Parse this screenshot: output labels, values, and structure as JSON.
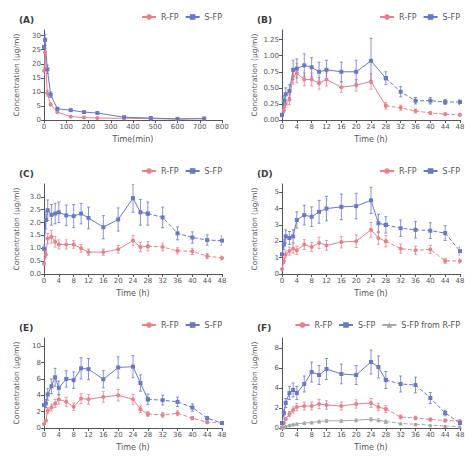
{
  "chart_data": [
    {
      "type": "line",
      "title": "(A)",
      "xlabel": "Time(min)",
      "ylabel": "Concentration (μg/ml)",
      "xlim": [
        0,
        800
      ],
      "ylim": [
        0,
        32
      ],
      "xticks": [
        0,
        100,
        200,
        300,
        400,
        500,
        600,
        700,
        800
      ],
      "yticks": [
        0,
        5,
        10,
        15,
        20,
        25,
        30
      ],
      "grid": false,
      "legend": "upper right",
      "series": [
        {
          "name": "R-FP",
          "color": "#E8808A",
          "marker": "circle",
          "x": [
            0,
            5,
            15,
            30,
            60,
            120,
            180,
            240,
            360,
            480,
            600,
            720
          ],
          "values": [
            17.5,
            24.0,
            9.5,
            5.5,
            2.8,
            1.2,
            0.9,
            0.7,
            0.6,
            0.5,
            0.3,
            0.5
          ],
          "errors": [
            1.5,
            2.5,
            1.0,
            0.5,
            0.3,
            0.2,
            0.15,
            0.1,
            0.08,
            0.07,
            0.05,
            0.08
          ]
        },
        {
          "name": "S-FP",
          "color": "#6878C8",
          "marker": "square",
          "x": [
            0,
            5,
            15,
            30,
            60,
            120,
            180,
            240,
            360,
            480,
            600,
            720
          ],
          "values": [
            26.0,
            28.5,
            18.0,
            9.0,
            4.0,
            3.5,
            2.8,
            2.5,
            1.0,
            0.7,
            0.4,
            0.5
          ],
          "errors": [
            2.0,
            2.0,
            1.5,
            1.0,
            0.4,
            0.4,
            0.3,
            0.3,
            0.1,
            0.1,
            0.06,
            0.08
          ]
        }
      ]
    },
    {
      "type": "line",
      "title": "(B)",
      "xlabel": "Time (h)",
      "ylabel": "Concentration (μg/ml)",
      "xlim": [
        0,
        48
      ],
      "ylim": [
        0,
        1.4
      ],
      "xticks": [
        0,
        4,
        8,
        12,
        16,
        20,
        24,
        28,
        32,
        36,
        40,
        44,
        48
      ],
      "yticks": [
        {
          "value": 0,
          "label": "0.00"
        },
        0.25,
        {
          "value": 0.5,
          "label": "0.50"
        },
        0.75,
        {
          "value": 1,
          "label": "1.00"
        },
        1.25
      ],
      "grid": false,
      "legend": "upper right",
      "dash_start": 28,
      "series": [
        {
          "name": "R-FP",
          "color": "#E8808A",
          "marker": "circle",
          "x": [
            0,
            0.5,
            1,
            2,
            3,
            4,
            6,
            8,
            10,
            12,
            16,
            20,
            24,
            28,
            32,
            36,
            40,
            44,
            48
          ],
          "values": [
            0.07,
            0.15,
            0.25,
            0.32,
            0.68,
            0.73,
            0.63,
            0.63,
            0.57,
            0.63,
            0.51,
            0.54,
            0.6,
            0.22,
            0.19,
            0.14,
            0.11,
            0.09,
            0.08
          ],
          "errors": [
            0.02,
            0.04,
            0.06,
            0.08,
            0.12,
            0.15,
            0.1,
            0.1,
            0.09,
            0.1,
            0.08,
            0.09,
            0.12,
            0.05,
            0.04,
            0.03,
            0.02,
            0.02,
            0.02
          ]
        },
        {
          "name": "S-FP",
          "color": "#6878C8",
          "marker": "square",
          "x": [
            0,
            0.5,
            1,
            2,
            3,
            4,
            6,
            8,
            10,
            12,
            16,
            20,
            24,
            28,
            32,
            36,
            40,
            44,
            48
          ],
          "values": [
            0.08,
            0.3,
            0.4,
            0.45,
            0.78,
            0.8,
            0.85,
            0.82,
            0.75,
            0.78,
            0.75,
            0.75,
            0.92,
            0.65,
            0.44,
            0.3,
            0.3,
            0.28,
            0.28
          ],
          "errors": [
            0.02,
            0.08,
            0.1,
            0.1,
            0.15,
            0.15,
            0.18,
            0.15,
            0.15,
            0.15,
            0.15,
            0.18,
            0.35,
            0.1,
            0.08,
            0.05,
            0.05,
            0.04,
            0.04
          ]
        }
      ]
    },
    {
      "type": "line",
      "title": "(C)",
      "xlabel": "Time (h)",
      "ylabel": "Concentration (μg/ml)",
      "xlim": [
        0,
        48
      ],
      "ylim": [
        0,
        3.5
      ],
      "xticks": [
        0,
        4,
        8,
        12,
        16,
        20,
        24,
        28,
        32,
        36,
        40,
        44,
        48
      ],
      "yticks": [
        {
          "value": 0,
          "label": "0.0"
        },
        0.5,
        {
          "value": 1,
          "label": "1.0"
        },
        1.5,
        {
          "value": 2,
          "label": "2.0"
        },
        2.5,
        {
          "value": 3,
          "label": "3.0"
        }
      ],
      "grid": false,
      "legend": "upper right",
      "dash_start": 28,
      "series": [
        {
          "name": "R-FP",
          "color": "#E8808A",
          "marker": "circle",
          "x": [
            0,
            0.5,
            1,
            2,
            3,
            4,
            6,
            8,
            10,
            12,
            16,
            20,
            24,
            26,
            28,
            32,
            36,
            40,
            44,
            48
          ],
          "values": [
            0.4,
            0.75,
            1.38,
            1.45,
            1.25,
            1.15,
            1.15,
            1.15,
            1.0,
            0.85,
            0.85,
            0.96,
            1.3,
            1.05,
            1.08,
            1.05,
            0.9,
            0.88,
            0.7,
            0.62
          ],
          "errors": [
            0.06,
            0.12,
            0.2,
            0.25,
            0.2,
            0.18,
            0.18,
            0.15,
            0.15,
            0.12,
            0.12,
            0.15,
            0.2,
            0.18,
            0.18,
            0.15,
            0.12,
            0.12,
            0.1,
            0.08
          ]
        },
        {
          "name": "S-FP",
          "color": "#6878C8",
          "marker": "square",
          "x": [
            0,
            0.5,
            1,
            2,
            3,
            4,
            6,
            8,
            10,
            12,
            16,
            20,
            24,
            26,
            28,
            32,
            36,
            40,
            44,
            48
          ],
          "values": [
            0.98,
            2.1,
            2.48,
            2.3,
            2.35,
            2.4,
            2.28,
            2.25,
            2.35,
            2.18,
            1.82,
            2.12,
            2.95,
            2.4,
            2.35,
            2.2,
            1.58,
            1.42,
            1.32,
            1.3
          ],
          "errors": [
            0.15,
            0.35,
            0.4,
            0.4,
            0.4,
            0.4,
            0.4,
            0.45,
            0.4,
            0.42,
            0.45,
            0.45,
            0.55,
            0.5,
            0.45,
            0.4,
            0.25,
            0.22,
            0.2,
            0.18
          ]
        }
      ]
    },
    {
      "type": "line",
      "title": "(D)",
      "xlabel": "Time (h)",
      "ylabel": "Concentration (μg/ml)",
      "xlim": [
        0,
        48
      ],
      "ylim": [
        0,
        5.5
      ],
      "xticks": [
        0,
        4,
        8,
        12,
        16,
        20,
        24,
        28,
        32,
        36,
        40,
        44,
        48
      ],
      "yticks": [
        0,
        1,
        2,
        3,
        4,
        5
      ],
      "grid": false,
      "legend": "upper right",
      "dash_start": 28,
      "series": [
        {
          "name": "R-FP",
          "color": "#E8808A",
          "marker": "circle",
          "x": [
            0,
            0.5,
            1,
            2,
            3,
            4,
            6,
            8,
            10,
            12,
            16,
            20,
            24,
            26,
            28,
            32,
            36,
            40,
            44,
            48
          ],
          "values": [
            0.3,
            0.8,
            1.2,
            1.4,
            1.55,
            1.45,
            1.8,
            1.65,
            1.9,
            1.75,
            1.95,
            2.0,
            2.7,
            2.2,
            2.0,
            1.55,
            1.45,
            1.5,
            0.8,
            0.8
          ],
          "errors": [
            0.05,
            0.15,
            0.2,
            0.25,
            0.28,
            0.25,
            0.3,
            0.28,
            0.35,
            0.3,
            0.35,
            0.38,
            0.45,
            0.38,
            0.35,
            0.28,
            0.25,
            0.25,
            0.15,
            0.15
          ]
        },
        {
          "name": "S-FP",
          "color": "#6878C8",
          "marker": "square",
          "x": [
            0,
            0.5,
            1,
            2,
            3,
            4,
            6,
            8,
            10,
            12,
            16,
            20,
            24,
            26,
            28,
            32,
            36,
            40,
            44,
            48
          ],
          "values": [
            1.2,
            1.8,
            2.3,
            2.2,
            2.3,
            3.3,
            3.6,
            3.5,
            3.8,
            4.0,
            4.1,
            4.15,
            4.5,
            3.1,
            3.0,
            2.8,
            2.7,
            2.65,
            2.5,
            1.4
          ],
          "errors": [
            0.2,
            0.3,
            0.4,
            0.4,
            0.4,
            0.5,
            0.6,
            0.6,
            0.7,
            0.75,
            0.78,
            0.78,
            0.8,
            0.55,
            0.5,
            0.5,
            0.5,
            0.48,
            0.45,
            0.25
          ]
        }
      ]
    },
    {
      "type": "line",
      "title": "(E)",
      "xlabel": "Time (h)",
      "ylabel": "Concentration (μg/ml)",
      "xlim": [
        0,
        48
      ],
      "ylim": [
        0,
        11
      ],
      "xticks": [
        0,
        4,
        8,
        12,
        16,
        20,
        24,
        28,
        32,
        36,
        40,
        44,
        48
      ],
      "yticks": [
        0,
        2,
        4,
        6,
        8,
        10
      ],
      "grid": false,
      "legend": "upper right",
      "dash_start": 28,
      "series": [
        {
          "name": "R-FP",
          "color": "#E8808A",
          "marker": "circle",
          "x": [
            0,
            0.5,
            1,
            2,
            3,
            4,
            6,
            8,
            10,
            12,
            16,
            20,
            24,
            26,
            28,
            32,
            36,
            40,
            44,
            48
          ],
          "values": [
            0.5,
            0.9,
            2.1,
            2.5,
            3.0,
            3.5,
            3.2,
            2.6,
            3.6,
            3.5,
            3.8,
            4.0,
            3.5,
            2.3,
            1.7,
            1.6,
            1.8,
            1.2,
            0.7,
            0.6
          ],
          "errors": [
            0.08,
            0.15,
            0.35,
            0.4,
            0.5,
            0.6,
            0.55,
            0.45,
            0.6,
            0.6,
            0.65,
            0.7,
            0.6,
            0.4,
            0.3,
            0.28,
            0.3,
            0.2,
            0.12,
            0.1
          ]
        },
        {
          "name": "S-FP",
          "color": "#6878C8",
          "marker": "square",
          "x": [
            0,
            0.5,
            1,
            2,
            3,
            4,
            6,
            8,
            10,
            12,
            16,
            20,
            24,
            26,
            28,
            32,
            36,
            40,
            44,
            48
          ],
          "values": [
            2.8,
            3.0,
            4.1,
            5.1,
            6.2,
            4.9,
            6.0,
            5.85,
            7.3,
            7.2,
            5.95,
            7.4,
            7.5,
            5.5,
            3.5,
            3.4,
            3.2,
            2.5,
            1.2,
            0.6
          ],
          "errors": [
            0.5,
            0.5,
            0.7,
            0.9,
            1.1,
            0.85,
            1.0,
            1.0,
            1.3,
            1.3,
            1.05,
            1.3,
            1.35,
            1.0,
            0.65,
            0.6,
            0.58,
            0.45,
            0.22,
            0.1
          ]
        }
      ]
    },
    {
      "type": "line",
      "title": "(F)",
      "xlabel": "Time (h)",
      "ylabel": "Concentration (μg/ml)",
      "xlim": [
        0,
        48
      ],
      "ylim": [
        0,
        9
      ],
      "xticks": [
        0,
        4,
        8,
        12,
        16,
        20,
        24,
        28,
        32,
        36,
        40,
        44,
        48
      ],
      "yticks": [
        0,
        2,
        4,
        6,
        8
      ],
      "grid": false,
      "legend": "upper right",
      "dash_start": 28,
      "series": [
        {
          "name": "R-FP",
          "color": "#E8808A",
          "marker": "circle",
          "x": [
            0,
            0.5,
            1,
            2,
            3,
            4,
            6,
            8,
            10,
            12,
            16,
            20,
            24,
            26,
            28,
            32,
            36,
            40,
            44,
            48
          ],
          "values": [
            0.1,
            0.5,
            0.9,
            1.4,
            1.8,
            2.1,
            2.2,
            2.2,
            2.4,
            2.3,
            2.2,
            2.4,
            2.5,
            2.1,
            1.9,
            1.1,
            1.0,
            0.85,
            0.75,
            0.7
          ],
          "errors": [
            0.02,
            0.09,
            0.15,
            0.25,
            0.3,
            0.38,
            0.4,
            0.4,
            0.45,
            0.42,
            0.4,
            0.42,
            0.45,
            0.38,
            0.35,
            0.2,
            0.18,
            0.15,
            0.13,
            0.12
          ]
        },
        {
          "name": "S-FP",
          "color": "#6878C8",
          "marker": "square",
          "x": [
            0,
            0.5,
            1,
            2,
            3,
            4,
            6,
            8,
            10,
            12,
            16,
            20,
            24,
            26,
            28,
            32,
            36,
            40,
            44,
            48
          ],
          "values": [
            0.5,
            1.5,
            2.5,
            3.5,
            3.8,
            3.5,
            4.4,
            5.6,
            5.3,
            5.9,
            5.4,
            5.3,
            6.6,
            6.1,
            4.8,
            4.4,
            4.3,
            3.0,
            1.5,
            0.5
          ],
          "errors": [
            0.1,
            0.3,
            0.45,
            0.65,
            0.7,
            0.65,
            0.8,
            1.0,
            0.95,
            1.05,
            0.98,
            0.95,
            1.2,
            1.1,
            0.85,
            0.8,
            0.78,
            0.55,
            0.28,
            0.1
          ]
        },
        {
          "name": "S-FP from R-FP",
          "color": "#A0A8A0",
          "marker": "triangle",
          "x": [
            0,
            0.5,
            1,
            2,
            3,
            4,
            6,
            8,
            10,
            12,
            16,
            20,
            24,
            26,
            28,
            32,
            36,
            40,
            44,
            48
          ],
          "values": [
            0.02,
            0.08,
            0.18,
            0.28,
            0.35,
            0.42,
            0.5,
            0.55,
            0.65,
            0.72,
            0.72,
            0.78,
            0.88,
            0.78,
            0.65,
            0.45,
            0.38,
            0.28,
            0.2,
            0.15
          ],
          "errors": [
            0.005,
            0.015,
            0.03,
            0.05,
            0.06,
            0.07,
            0.09,
            0.1,
            0.12,
            0.13,
            0.13,
            0.14,
            0.16,
            0.14,
            0.12,
            0.08,
            0.07,
            0.05,
            0.035,
            0.025
          ]
        }
      ]
    }
  ]
}
